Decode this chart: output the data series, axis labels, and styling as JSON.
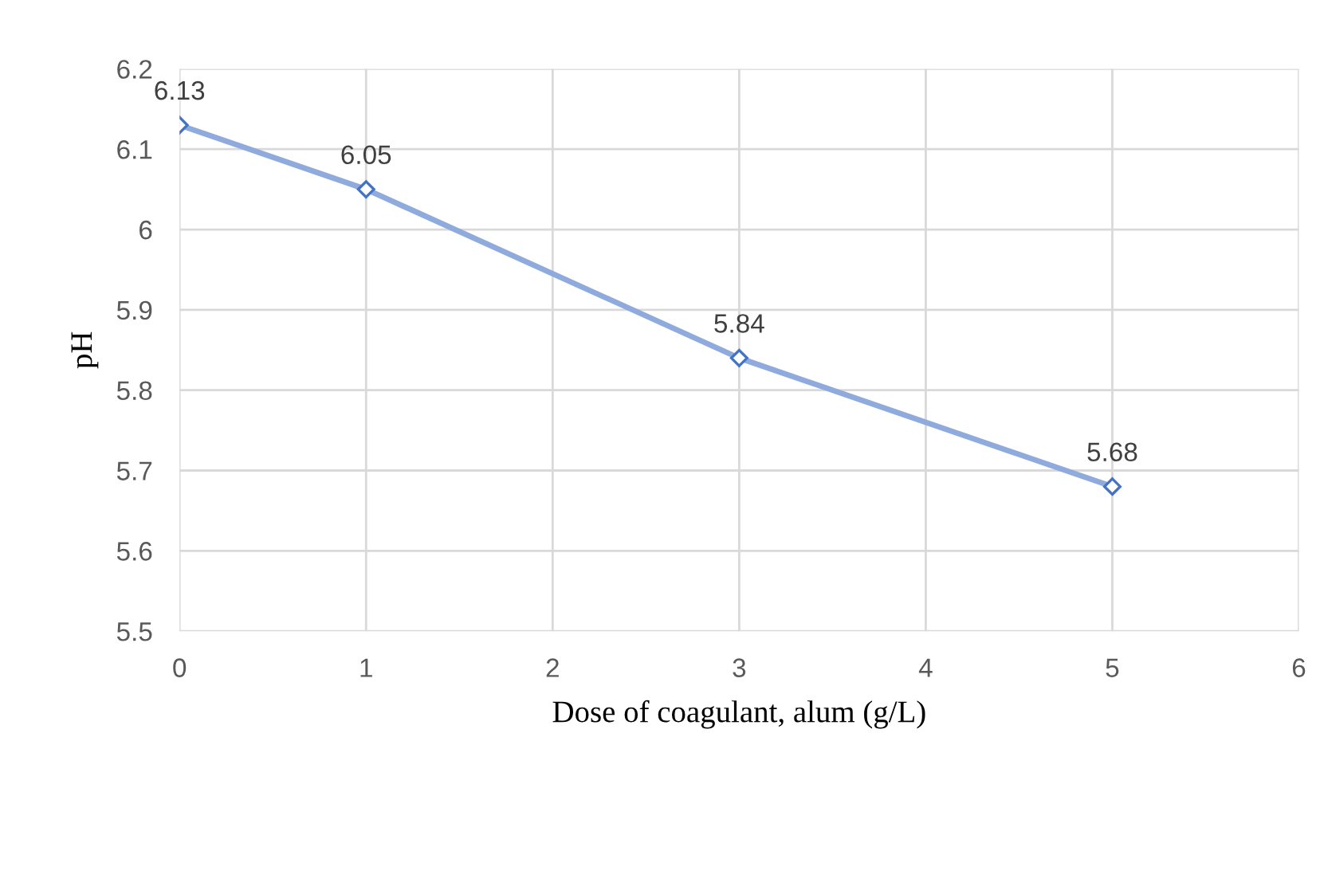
{
  "chart_data": {
    "type": "line",
    "xlabel": "Dose of coagulant, alum (g/L)",
    "ylabel": "pH",
    "x": [
      0,
      1,
      3,
      5
    ],
    "series": [
      {
        "color": "#8faadc",
        "values": [
          6.13,
          6.05,
          5.84,
          5.68
        ]
      }
    ],
    "xlim": [
      0,
      6
    ],
    "xticks": [
      0,
      1,
      2,
      3,
      4,
      5,
      6
    ],
    "ylim": [
      5.5,
      6.2
    ],
    "yticks": [
      5.5,
      5.6,
      5.7,
      5.8,
      5.9,
      6,
      6.1,
      6.2
    ],
    "grid": true,
    "marker": "diamond",
    "line_style": "solid",
    "data_labels": true
  }
}
